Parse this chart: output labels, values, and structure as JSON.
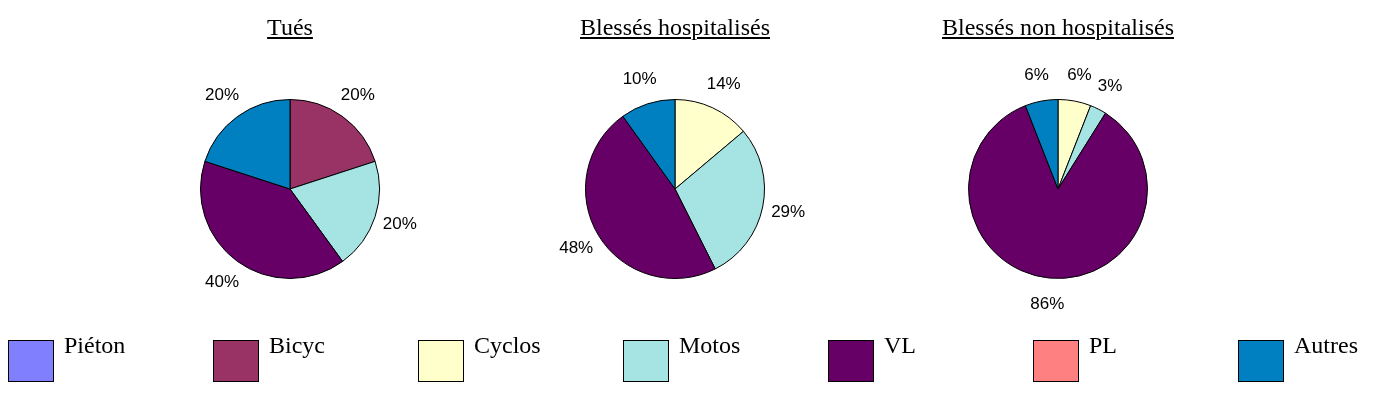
{
  "chart_data": [
    {
      "type": "pie",
      "title": "Tués",
      "categories": [
        "Piéton",
        "Bicyc",
        "Cyclos",
        "Motos",
        "VL",
        "PL",
        "Autres"
      ],
      "values": [
        null,
        20,
        null,
        20,
        40,
        null,
        20
      ],
      "value_labels": [
        null,
        "20%",
        null,
        "20%",
        "40%",
        null,
        "20%"
      ],
      "colors": [
        "#8080ff",
        "#993366",
        "#ffffcc",
        "#a6e3e3",
        "#660066",
        "#ff8080",
        "#0080c0"
      ],
      "legend": "bottom"
    },
    {
      "type": "pie",
      "title": "Blessés hospitalisés",
      "categories": [
        null,
        null,
        null,
        null,
        null,
        null,
        null
      ],
      "values": [
        null,
        null,
        14,
        29,
        48,
        null,
        10
      ],
      "value_labels": [
        null,
        null,
        "14%",
        "29%",
        "48%",
        null,
        "10%"
      ],
      "colors": [
        "#8080ff",
        "#993366",
        "#ffffcc",
        "#a6e3e3",
        "#660066",
        "#ff8080",
        "#0080c0"
      ]
    },
    {
      "type": "pie",
      "title": "Blessés non hospitalisés",
      "categories": [
        null,
        null,
        null,
        null,
        null,
        null,
        null
      ],
      "values": [
        null,
        null,
        6,
        3,
        86,
        null,
        6
      ],
      "value_labels": [
        null,
        null,
        "6%",
        "3%",
        "86%",
        null,
        "6%"
      ],
      "colors": [
        "#8080ff",
        "#993366",
        "#ffffcc",
        "#a6e3e3",
        "#660066",
        "#ff8080",
        "#0080c0"
      ]
    }
  ]
}
